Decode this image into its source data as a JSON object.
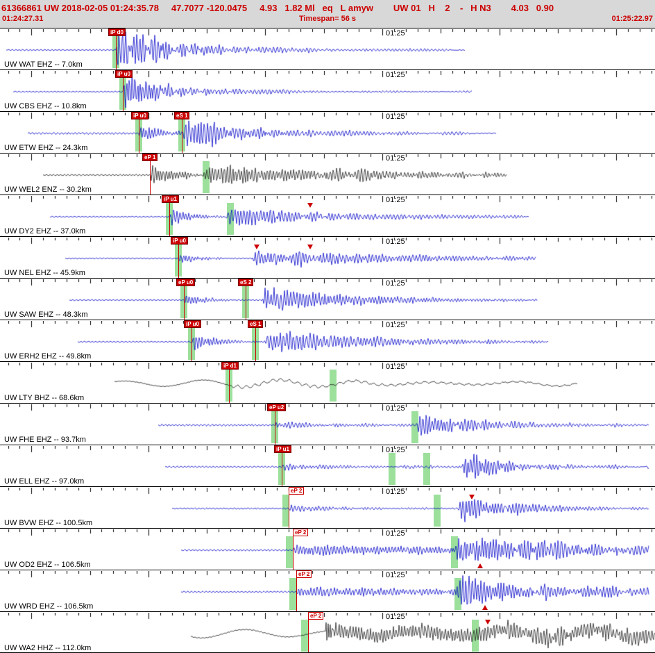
{
  "header": {
    "event_line": "61366861 UW 2018-02-05 01:24:35.78     47.7077 -120.0475     4.93   1.82 Ml   eq   L amyw        UW 01   H    2    -   H N3        4.03   0.90",
    "start_time": "01:24:27.31",
    "timespan": "Timespan=  56 s",
    "end_time": "01:25:22.97"
  },
  "time_axis": {
    "start_sec": 27.31,
    "span_sec": 56,
    "minute_label": "01:25",
    "minute_sec": 60
  },
  "colors": {
    "trace_blue": "#0000c8",
    "trace_black": "#1a1a1a",
    "pick_red": "#cc0000",
    "band_green": "#9ce09c",
    "header_bg": "#d8d8d8",
    "header_text": "#cc0000"
  },
  "traces": [
    {
      "station": "UW WAT EHZ -- 7.0km",
      "color": "blue",
      "seed": 1,
      "x0": 0.01,
      "x1": 0.71,
      "noise": 0.9,
      "bursts": [
        {
          "s": 0.177,
          "r": 0.003,
          "d": 0.06,
          "f": 1.5,
          "a": 30
        },
        {
          "s": 0.19,
          "r": 0.01,
          "d": 0.22,
          "f": 1.2,
          "a": 9
        }
      ],
      "picks": [
        {
          "x": 0.177,
          "label": "iP d0",
          "style": "solid"
        }
      ],
      "bands": [
        0.177
      ],
      "markers": []
    },
    {
      "station": "UW CBS EHZ -- 10.8km",
      "color": "blue",
      "seed": 2,
      "x0": 0.02,
      "x1": 0.72,
      "noise": 0.8,
      "bursts": [
        {
          "s": 0.188,
          "r": 0.003,
          "d": 0.05,
          "f": 1.5,
          "a": 24
        },
        {
          "s": 0.2,
          "r": 0.01,
          "d": 0.2,
          "f": 1.2,
          "a": 7
        }
      ],
      "picks": [
        {
          "x": 0.188,
          "label": "iP u0",
          "style": "solid"
        }
      ],
      "bands": [
        0.188
      ],
      "markers": []
    },
    {
      "station": "UW ETW EHZ -- 24.3km",
      "color": "blue",
      "seed": 3,
      "x0": 0.042,
      "x1": 0.757,
      "noise": 1.3,
      "bursts": [
        {
          "s": 0.212,
          "r": 0.003,
          "d": 0.04,
          "f": 1.5,
          "a": 10
        },
        {
          "s": 0.278,
          "r": 0.004,
          "d": 0.08,
          "f": 1.4,
          "a": 20
        },
        {
          "s": 0.3,
          "r": 0.02,
          "d": 0.25,
          "f": 1.2,
          "a": 6
        }
      ],
      "picks": [
        {
          "x": 0.212,
          "label": "iP u0",
          "style": "solid"
        },
        {
          "x": 0.278,
          "label": "eS 1",
          "style": "solid"
        }
      ],
      "bands": [
        0.212,
        0.278
      ],
      "markers": []
    },
    {
      "station": "UW WEL2 ENZ -- 30.2km",
      "color": "black",
      "seed": 4,
      "x0": 0.066,
      "x1": 0.773,
      "noise": 1.0,
      "bursts": [
        {
          "s": 0.229,
          "r": 0.003,
          "d": 0.05,
          "f": 1.6,
          "a": 12
        },
        {
          "s": 0.3,
          "r": 0.02,
          "d": 0.18,
          "f": 1.5,
          "a": 14
        },
        {
          "s": 0.45,
          "r": 0.03,
          "d": 0.25,
          "f": 1.4,
          "a": 8
        }
      ],
      "picks": [
        {
          "x": 0.229,
          "label": "eP 1",
          "style": "solid"
        }
      ],
      "bands": [
        0.315
      ],
      "markers": []
    },
    {
      "station": "UW DY2 EHZ -- 37.0km",
      "color": "blue",
      "seed": 5,
      "x0": 0.076,
      "x1": 0.807,
      "noise": 0.8,
      "bursts": [
        {
          "s": 0.259,
          "r": 0.003,
          "d": 0.03,
          "f": 1.5,
          "a": 13
        },
        {
          "s": 0.345,
          "r": 0.005,
          "d": 0.1,
          "f": 1.4,
          "a": 14
        },
        {
          "s": 0.4,
          "r": 0.02,
          "d": 0.3,
          "f": 1.2,
          "a": 5
        }
      ],
      "picks": [
        {
          "x": 0.259,
          "label": "iP u1",
          "style": "solid"
        }
      ],
      "bands": [
        0.259,
        0.352
      ],
      "markers": [
        {
          "x": 0.473,
          "dir": "down"
        }
      ]
    },
    {
      "station": "UW NEL EHZ -- 45.9km",
      "color": "blue",
      "seed": 6,
      "x0": 0.1,
      "x1": 0.818,
      "noise": 0.8,
      "bursts": [
        {
          "s": 0.272,
          "r": 0.003,
          "d": 0.03,
          "f": 1.5,
          "a": 7
        },
        {
          "s": 0.385,
          "r": 0.006,
          "d": 0.06,
          "f": 1.4,
          "a": 13
        },
        {
          "s": 0.44,
          "r": 0.01,
          "d": 0.25,
          "f": 1.3,
          "a": 9
        }
      ],
      "picks": [
        {
          "x": 0.272,
          "label": "iP u0",
          "style": "solid"
        }
      ],
      "bands": [
        0.272
      ],
      "markers": [
        {
          "x": 0.392,
          "dir": "down"
        },
        {
          "x": 0.473,
          "dir": "down"
        }
      ]
    },
    {
      "station": "UW SAW EHZ -- 48.3km",
      "color": "blue",
      "seed": 7,
      "x0": 0.106,
      "x1": 0.82,
      "noise": 0.8,
      "bursts": [
        {
          "s": 0.281,
          "r": 0.003,
          "d": 0.03,
          "f": 1.5,
          "a": 9
        },
        {
          "s": 0.4,
          "r": 0.005,
          "d": 0.15,
          "f": 1.4,
          "a": 16
        }
      ],
      "picks": [
        {
          "x": 0.281,
          "label": "eP u0",
          "style": "solid"
        },
        {
          "x": 0.375,
          "label": "eS 2",
          "style": "solid"
        }
      ],
      "bands": [
        0.281,
        0.375
      ],
      "markers": []
    },
    {
      "station": "UW ERH2 EHZ -- 49.8km",
      "color": "blue",
      "seed": 8,
      "x0": 0.119,
      "x1": 0.837,
      "noise": 0.8,
      "bursts": [
        {
          "s": 0.292,
          "r": 0.003,
          "d": 0.04,
          "f": 1.5,
          "a": 11
        },
        {
          "s": 0.405,
          "r": 0.006,
          "d": 0.18,
          "f": 1.3,
          "a": 15
        }
      ],
      "picks": [
        {
          "x": 0.292,
          "label": "iP u0",
          "style": "solid"
        },
        {
          "x": 0.39,
          "label": "eS 1",
          "style": "solid"
        }
      ],
      "bands": [
        0.292,
        0.39
      ],
      "markers": []
    },
    {
      "station": "UW LTY BHZ -- 68.6km",
      "color": "black",
      "seed": 9,
      "x0": 0.175,
      "x1": 0.881,
      "noise": 0.4,
      "bursts": [
        {
          "s": 0,
          "r": 0.001,
          "d": 99,
          "f": 0.055,
          "a": 5
        },
        {
          "s": 0.52,
          "r": 0.05,
          "d": 0.15,
          "f": 0.06,
          "a": 5
        },
        {
          "s": 0.35,
          "r": 0.01,
          "d": 0.5,
          "f": 0.5,
          "a": 2.5
        }
      ],
      "picks": [
        {
          "x": 0.35,
          "label": "iP d1",
          "style": "solid"
        }
      ],
      "bands": [
        0.35,
        0.508
      ],
      "markers": []
    },
    {
      "station": "UW FHE EHZ -- 93.7km",
      "color": "blue",
      "seed": 10,
      "x0": 0.242,
      "x1": 0.99,
      "noise": 1.2,
      "bursts": [
        {
          "s": 0.419,
          "r": 0.004,
          "d": 0.12,
          "f": 1.3,
          "a": 4
        },
        {
          "s": 0.635,
          "r": 0.01,
          "d": 0.05,
          "f": 1.4,
          "a": 20
        },
        {
          "s": 0.68,
          "r": 0.02,
          "d": 0.2,
          "f": 1.2,
          "a": 6
        }
      ],
      "picks": [
        {
          "x": 0.419,
          "label": "eP u2",
          "style": "solid"
        }
      ],
      "bands": [
        0.419,
        0.633
      ],
      "markers": []
    },
    {
      "station": "UW ELL EHZ -- 97.0km",
      "color": "blue",
      "seed": 11,
      "x0": 0.252,
      "x1": 0.99,
      "noise": 1.0,
      "bursts": [
        {
          "s": 0.43,
          "r": 0.004,
          "d": 0.1,
          "f": 1.3,
          "a": 4
        },
        {
          "s": 0.6,
          "r": 0.02,
          "d": 0.2,
          "f": 1.2,
          "a": 3
        },
        {
          "s": 0.705,
          "r": 0.006,
          "d": 0.045,
          "f": 1.5,
          "a": 24
        },
        {
          "s": 0.74,
          "r": 0.02,
          "d": 0.2,
          "f": 1.2,
          "a": 5
        }
      ],
      "picks": [
        {
          "x": 0.43,
          "label": "iP u1",
          "style": "solid"
        }
      ],
      "bands": [
        0.43,
        0.598,
        0.651
      ],
      "markers": []
    },
    {
      "station": "UW BVW EHZ -- 100.5km",
      "color": "blue",
      "seed": 12,
      "x0": 0.263,
      "x1": 0.99,
      "noise": 1.0,
      "bursts": [
        {
          "s": 0.441,
          "r": 0.004,
          "d": 0.1,
          "f": 1.3,
          "a": 4
        },
        {
          "s": 0.7,
          "r": 0.006,
          "d": 0.04,
          "f": 1.5,
          "a": 22
        },
        {
          "s": 0.755,
          "r": 0.01,
          "d": 0.1,
          "f": 1.3,
          "a": 9
        }
      ],
      "picks": [
        {
          "x": 0.441,
          "label": "eP 2",
          "style": "outline"
        }
      ],
      "bands": [
        0.436,
        0.667
      ],
      "markers": [
        {
          "x": 0.72,
          "dir": "down"
        }
      ]
    },
    {
      "station": "UW OD2 EHZ -- 106.5km",
      "color": "blue",
      "seed": 13,
      "x0": 0.277,
      "x1": 0.99,
      "noise": 1.0,
      "bursts": [
        {
          "s": 0.447,
          "r": 0.004,
          "d": 0.5,
          "f": 1.4,
          "a": 7
        },
        {
          "s": 0.69,
          "r": 0.008,
          "d": 0.09,
          "f": 1.5,
          "a": 24
        },
        {
          "s": 0.78,
          "r": 0.02,
          "d": 0.5,
          "f": 1.3,
          "a": 9
        }
      ],
      "picks": [
        {
          "x": 0.447,
          "label": "eP 2",
          "style": "outline"
        }
      ],
      "bands": [
        0.442,
        0.694
      ],
      "markers": [
        {
          "x": 0.733,
          "dir": "up"
        }
      ]
    },
    {
      "station": "UW WRD EHZ -- 106.5km",
      "color": "blue",
      "seed": 14,
      "x0": 0.277,
      "x1": 0.99,
      "noise": 1.0,
      "bursts": [
        {
          "s": 0.452,
          "r": 0.004,
          "d": 0.4,
          "f": 1.4,
          "a": 6
        },
        {
          "s": 0.695,
          "r": 0.008,
          "d": 0.1,
          "f": 1.5,
          "a": 20
        },
        {
          "s": 0.8,
          "r": 0.02,
          "d": 0.4,
          "f": 1.3,
          "a": 8
        }
      ],
      "picks": [
        {
          "x": 0.452,
          "label": "eP 2",
          "style": "outline"
        }
      ],
      "bands": [
        0.447,
        0.699
      ],
      "markers": [
        {
          "x": 0.74,
          "dir": "up"
        }
      ]
    },
    {
      "station": "UW WA2 HHZ -- 112.0km",
      "color": "black",
      "seed": 15,
      "x0": 0.291,
      "x1": 1.0,
      "noise": 0.6,
      "bursts": [
        {
          "s": 0,
          "r": 0.001,
          "d": 99,
          "f": 0.05,
          "a": 6
        },
        {
          "s": 0.497,
          "r": 0.0008,
          "d": 0.006,
          "f": 2.2,
          "a": 27
        },
        {
          "s": 0.5,
          "r": 0.01,
          "d": 99,
          "f": 1.5,
          "a": 9
        },
        {
          "s": 0.75,
          "r": 0.02,
          "d": 0.3,
          "f": 1.3,
          "a": 7
        }
      ],
      "picks": [
        {
          "x": 0.47,
          "label": "eP 2",
          "style": "outline"
        }
      ],
      "bands": [
        0.465,
        0.726
      ],
      "markers": [
        {
          "x": 0.745,
          "dir": "down"
        }
      ]
    }
  ]
}
